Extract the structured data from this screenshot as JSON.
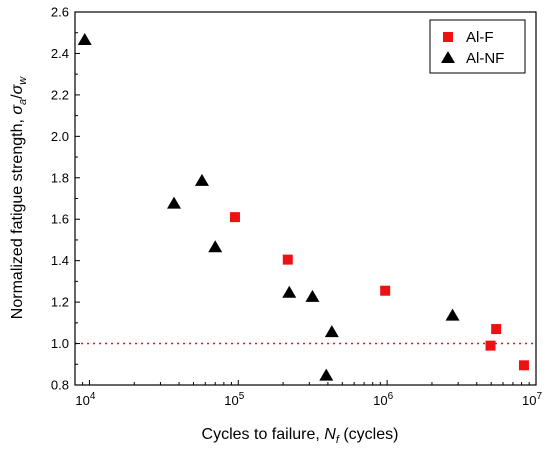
{
  "chart_data": {
    "type": "scatter",
    "xscale": "log",
    "xlim": [
      8000,
      10000000
    ],
    "ylim": [
      0.8,
      2.6
    ],
    "x_ticks": [
      {
        "value": 10000,
        "base": "10",
        "exp": "4"
      },
      {
        "value": 100000,
        "base": "10",
        "exp": "5"
      },
      {
        "value": 1000000,
        "base": "10",
        "exp": "6"
      },
      {
        "value": 10000000,
        "base": "10",
        "exp": "7"
      }
    ],
    "y_ticks": [
      "0.8",
      "1.0",
      "1.2",
      "1.4",
      "1.6",
      "1.8",
      "2.0",
      "2.2",
      "2.4",
      "2.6"
    ],
    "xlabel": {
      "main": "Cycles to failure, ",
      "symbol": "N",
      "sub": "f",
      "unit": " (cycles)"
    },
    "ylabel": {
      "main": "Normalized fatigue strength, ",
      "num": "σ",
      "num_sub": "a",
      "slash": "/",
      "den": "σ",
      "den_sub": "w"
    },
    "reference_line": {
      "y": 1.0,
      "color": "#e31a1c",
      "style": "dotted"
    },
    "legend_position": "top-right",
    "series": [
      {
        "name": "Al-F",
        "marker": "square",
        "color": "#ee1111",
        "points": [
          {
            "x": 95000,
            "y": 1.61
          },
          {
            "x": 215000,
            "y": 1.405
          },
          {
            "x": 970000,
            "y": 1.255
          },
          {
            "x": 4950000,
            "y": 0.99
          },
          {
            "x": 5400000,
            "y": 1.07
          },
          {
            "x": 8300000,
            "y": 0.895
          }
        ]
      },
      {
        "name": "Al-NF",
        "marker": "triangle",
        "color": "#000000",
        "points": [
          {
            "x": 9300,
            "y": 2.465
          },
          {
            "x": 37000,
            "y": 1.675
          },
          {
            "x": 57000,
            "y": 1.785
          },
          {
            "x": 70000,
            "y": 1.465
          },
          {
            "x": 220000,
            "y": 1.245
          },
          {
            "x": 315000,
            "y": 1.225
          },
          {
            "x": 390000,
            "y": 0.845
          },
          {
            "x": 425000,
            "y": 1.055
          },
          {
            "x": 2750000,
            "y": 1.135
          }
        ]
      }
    ]
  }
}
